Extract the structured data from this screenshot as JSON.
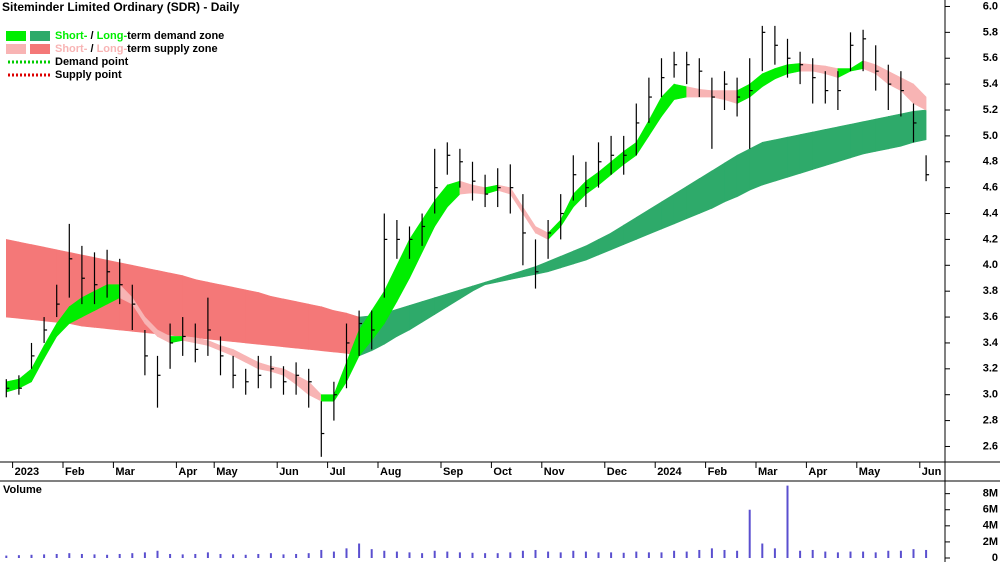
{
  "chart_data": {
    "type": "candlestick",
    "title": "Siteminder Limited Ordinary (SDR) - Daily",
    "categories": [
      null,
      "2023",
      null,
      null,
      null,
      "Feb",
      null,
      null,
      null,
      "Mar",
      null,
      null,
      null,
      null,
      "Apr",
      null,
      null,
      "May",
      null,
      null,
      null,
      null,
      "Jun",
      null,
      null,
      null,
      "Jul",
      null,
      null,
      null,
      "Aug",
      null,
      null,
      null,
      null,
      "Sep",
      null,
      null,
      null,
      "Oct",
      null,
      null,
      null,
      "Nov",
      null,
      null,
      null,
      null,
      "Dec",
      null,
      null,
      null,
      "2024",
      null,
      null,
      null,
      "Feb",
      null,
      null,
      null,
      "Mar",
      null,
      null,
      null,
      "Apr",
      null,
      null,
      null,
      "May",
      null,
      null,
      null,
      null,
      "Jun"
    ],
    "high": [
      3.12,
      3.15,
      3.4,
      3.6,
      3.85,
      4.32,
      4.15,
      4.1,
      4.12,
      4.05,
      3.85,
      3.5,
      3.3,
      3.55,
      3.6,
      3.55,
      3.75,
      3.45,
      3.3,
      3.2,
      3.3,
      3.3,
      3.22,
      3.25,
      3.2,
      2.95,
      3.1,
      3.55,
      3.65,
      3.65,
      4.4,
      4.35,
      4.3,
      4.4,
      4.9,
      4.95,
      4.9,
      4.8,
      4.7,
      4.75,
      4.78,
      4.55,
      4.2,
      4.35,
      4.55,
      4.85,
      4.8,
      4.95,
      5.0,
      5.0,
      5.25,
      5.45,
      5.6,
      5.65,
      5.65,
      5.6,
      5.45,
      5.5,
      5.45,
      5.6,
      5.85,
      5.85,
      5.75,
      5.65,
      5.6,
      5.5,
      5.5,
      5.8,
      5.82,
      5.7,
      5.55,
      5.5,
      5.25,
      4.85
    ],
    "low": [
      2.98,
      3.0,
      3.2,
      3.4,
      3.6,
      3.75,
      3.7,
      3.7,
      3.75,
      3.7,
      3.5,
      3.15,
      2.9,
      3.2,
      3.3,
      3.25,
      3.3,
      3.15,
      3.05,
      3.0,
      3.05,
      3.05,
      3.0,
      3.0,
      2.9,
      2.52,
      2.8,
      3.05,
      3.3,
      3.35,
      3.75,
      4.05,
      4.05,
      4.15,
      4.4,
      4.7,
      4.6,
      4.5,
      4.45,
      4.45,
      4.4,
      4.0,
      3.82,
      4.05,
      4.2,
      4.5,
      4.45,
      4.6,
      4.7,
      4.7,
      4.85,
      5.1,
      5.3,
      5.45,
      5.4,
      5.3,
      4.9,
      5.2,
      5.15,
      4.9,
      5.5,
      5.55,
      5.45,
      5.4,
      5.25,
      5.25,
      5.2,
      5.5,
      5.5,
      5.35,
      5.2,
      5.15,
      4.95,
      4.65
    ],
    "close": [
      3.05,
      3.05,
      3.3,
      3.5,
      3.7,
      4.05,
      3.9,
      3.85,
      3.95,
      3.85,
      3.7,
      3.3,
      3.15,
      3.4,
      3.45,
      3.35,
      3.5,
      3.3,
      3.15,
      3.1,
      3.15,
      3.2,
      3.1,
      3.15,
      3.1,
      2.7,
      3.0,
      3.4,
      3.55,
      3.5,
      4.2,
      4.2,
      4.2,
      4.3,
      4.6,
      4.85,
      4.8,
      4.65,
      4.55,
      4.6,
      4.6,
      4.25,
      3.95,
      4.25,
      4.4,
      4.7,
      4.6,
      4.8,
      4.85,
      4.85,
      5.1,
      5.3,
      5.45,
      5.55,
      5.55,
      5.5,
      5.3,
      5.4,
      5.3,
      5.35,
      5.8,
      5.7,
      5.6,
      5.55,
      5.45,
      5.35,
      5.35,
      5.7,
      5.75,
      5.5,
      5.4,
      5.35,
      5.1,
      4.7
    ],
    "candle_color": "#000000",
    "ylim": [
      2.48,
      6.05
    ],
    "yticks": [
      2.6,
      2.8,
      {
        "value": 3,
        "label": "3.0"
      },
      3.2,
      3.4,
      3.6,
      3.8,
      {
        "value": 4,
        "label": "4.0"
      },
      4.2,
      4.4,
      4.6,
      4.8,
      {
        "value": 5,
        "label": "5.0"
      },
      5.2,
      5.4,
      5.6,
      5.8,
      {
        "value": 6,
        "label": "6.0"
      }
    ],
    "zones": {
      "long_term": {
        "demand_color": "#2eaa6a",
        "supply_color": "#f47878",
        "upper": [
          4.2,
          4.18,
          4.16,
          4.14,
          4.12,
          4.1,
          4.08,
          4.06,
          4.04,
          4.02,
          4.0,
          3.98,
          3.96,
          3.94,
          3.92,
          3.89,
          3.87,
          3.85,
          3.83,
          3.81,
          3.79,
          3.76,
          3.74,
          3.72,
          3.7,
          3.68,
          3.65,
          3.63,
          3.6,
          3.61,
          3.63,
          3.66,
          3.69,
          3.72,
          3.75,
          3.78,
          3.81,
          3.84,
          3.87,
          3.9,
          3.93,
          3.96,
          3.99,
          4.03,
          4.07,
          4.11,
          4.15,
          4.2,
          4.25,
          4.31,
          4.37,
          4.43,
          4.49,
          4.55,
          4.61,
          4.67,
          4.73,
          4.79,
          4.85,
          4.9,
          4.95,
          4.97,
          4.99,
          5.01,
          5.03,
          5.05,
          5.07,
          5.09,
          5.11,
          5.13,
          5.15,
          5.17,
          5.19,
          5.2
        ],
        "lower": [
          3.6,
          3.59,
          3.58,
          3.57,
          3.56,
          3.55,
          3.53,
          3.52,
          3.51,
          3.5,
          3.49,
          3.48,
          3.47,
          3.46,
          3.45,
          3.44,
          3.43,
          3.42,
          3.41,
          3.4,
          3.39,
          3.38,
          3.37,
          3.36,
          3.35,
          3.34,
          3.33,
          3.32,
          3.3,
          3.34,
          3.39,
          3.45,
          3.5,
          3.56,
          3.62,
          3.68,
          3.74,
          3.8,
          3.85,
          3.87,
          3.89,
          3.91,
          3.93,
          3.95,
          3.98,
          4.01,
          4.04,
          4.08,
          4.12,
          4.16,
          4.2,
          4.24,
          4.28,
          4.32,
          4.36,
          4.4,
          4.44,
          4.49,
          4.53,
          4.58,
          4.62,
          4.65,
          4.68,
          4.71,
          4.74,
          4.77,
          4.8,
          4.83,
          4.86,
          4.88,
          4.9,
          4.92,
          4.95,
          4.97
        ]
      },
      "short_term": {
        "demand_color": "#00ee00",
        "supply_color": "#f8b4b4",
        "upper": [
          3.1,
          3.12,
          3.2,
          3.38,
          3.55,
          3.68,
          3.75,
          3.8,
          3.85,
          3.85,
          3.75,
          3.6,
          3.5,
          3.45,
          3.45,
          3.44,
          3.42,
          3.38,
          3.35,
          3.3,
          3.25,
          3.22,
          3.2,
          3.15,
          3.1,
          3.0,
          3.0,
          3.25,
          3.5,
          3.65,
          3.8,
          4.0,
          4.2,
          4.35,
          4.5,
          4.62,
          4.65,
          4.62,
          4.6,
          4.62,
          4.6,
          4.45,
          4.3,
          4.25,
          4.35,
          4.55,
          4.65,
          4.72,
          4.8,
          4.88,
          4.95,
          5.12,
          5.3,
          5.4,
          5.38,
          5.36,
          5.35,
          5.35,
          5.35,
          5.4,
          5.48,
          5.52,
          5.55,
          5.56,
          5.55,
          5.54,
          5.52,
          5.52,
          5.58,
          5.55,
          5.5,
          5.45,
          5.4,
          5.3
        ],
        "lower": [
          3.02,
          3.05,
          3.1,
          3.28,
          3.45,
          3.55,
          3.6,
          3.65,
          3.7,
          3.75,
          3.7,
          3.55,
          3.45,
          3.4,
          3.42,
          3.4,
          3.38,
          3.34,
          3.3,
          3.25,
          3.2,
          3.18,
          3.15,
          3.08,
          3.0,
          2.95,
          2.95,
          3.1,
          3.3,
          3.42,
          3.55,
          3.72,
          3.9,
          4.1,
          4.3,
          4.45,
          4.55,
          4.56,
          4.55,
          4.58,
          4.55,
          4.4,
          4.25,
          4.2,
          4.3,
          4.45,
          4.55,
          4.62,
          4.7,
          4.78,
          4.85,
          5.0,
          5.15,
          5.28,
          5.3,
          5.3,
          5.3,
          5.28,
          5.25,
          5.3,
          5.38,
          5.44,
          5.48,
          5.5,
          5.5,
          5.48,
          5.45,
          5.5,
          5.52,
          5.48,
          5.4,
          5.35,
          5.25,
          5.2
        ]
      }
    },
    "legend": [
      {
        "short": "Short-",
        "sep": " / ",
        "long": "Long-",
        "text": "term demand zone"
      },
      {
        "short": "Short-",
        "sep": " / ",
        "long": "Long-",
        "text": "term supply zone"
      },
      {
        "text": "Demand point",
        "color": "#00cc00"
      },
      {
        "text": "Supply point",
        "color": "#dd0000"
      }
    ],
    "volume": {
      "label": "Volume",
      "color": "#5a4fcf",
      "values": [
        300000,
        350000,
        400000,
        450000,
        500000,
        600000,
        500000,
        450000,
        400000,
        500000,
        600000,
        700000,
        900000,
        500000,
        450000,
        500000,
        700000,
        500000,
        450000,
        400000,
        500000,
        600000,
        450000,
        500000,
        600000,
        1000000,
        800000,
        1200000,
        1800000,
        1100000,
        900000,
        800000,
        700000,
        600000,
        900000,
        800000,
        700000,
        650000,
        600000,
        600000,
        700000,
        900000,
        1000000,
        800000,
        700000,
        900000,
        800000,
        700000,
        700000,
        650000,
        800000,
        700000,
        700000,
        900000,
        800000,
        1000000,
        1200000,
        1000000,
        900000,
        6000000,
        1800000,
        1200000,
        9000000,
        900000,
        1000000,
        800000,
        700000,
        800000,
        800000,
        700000,
        900000,
        900000,
        1100000,
        1000000
      ],
      "ylim": [
        0,
        9200000
      ],
      "yticks": [
        0,
        {
          "value": 2000000,
          "label": "2M"
        },
        {
          "value": 4000000,
          "label": "4M"
        },
        {
          "value": 6000000,
          "label": "6M"
        },
        {
          "value": 8000000,
          "label": "8M"
        }
      ]
    }
  }
}
